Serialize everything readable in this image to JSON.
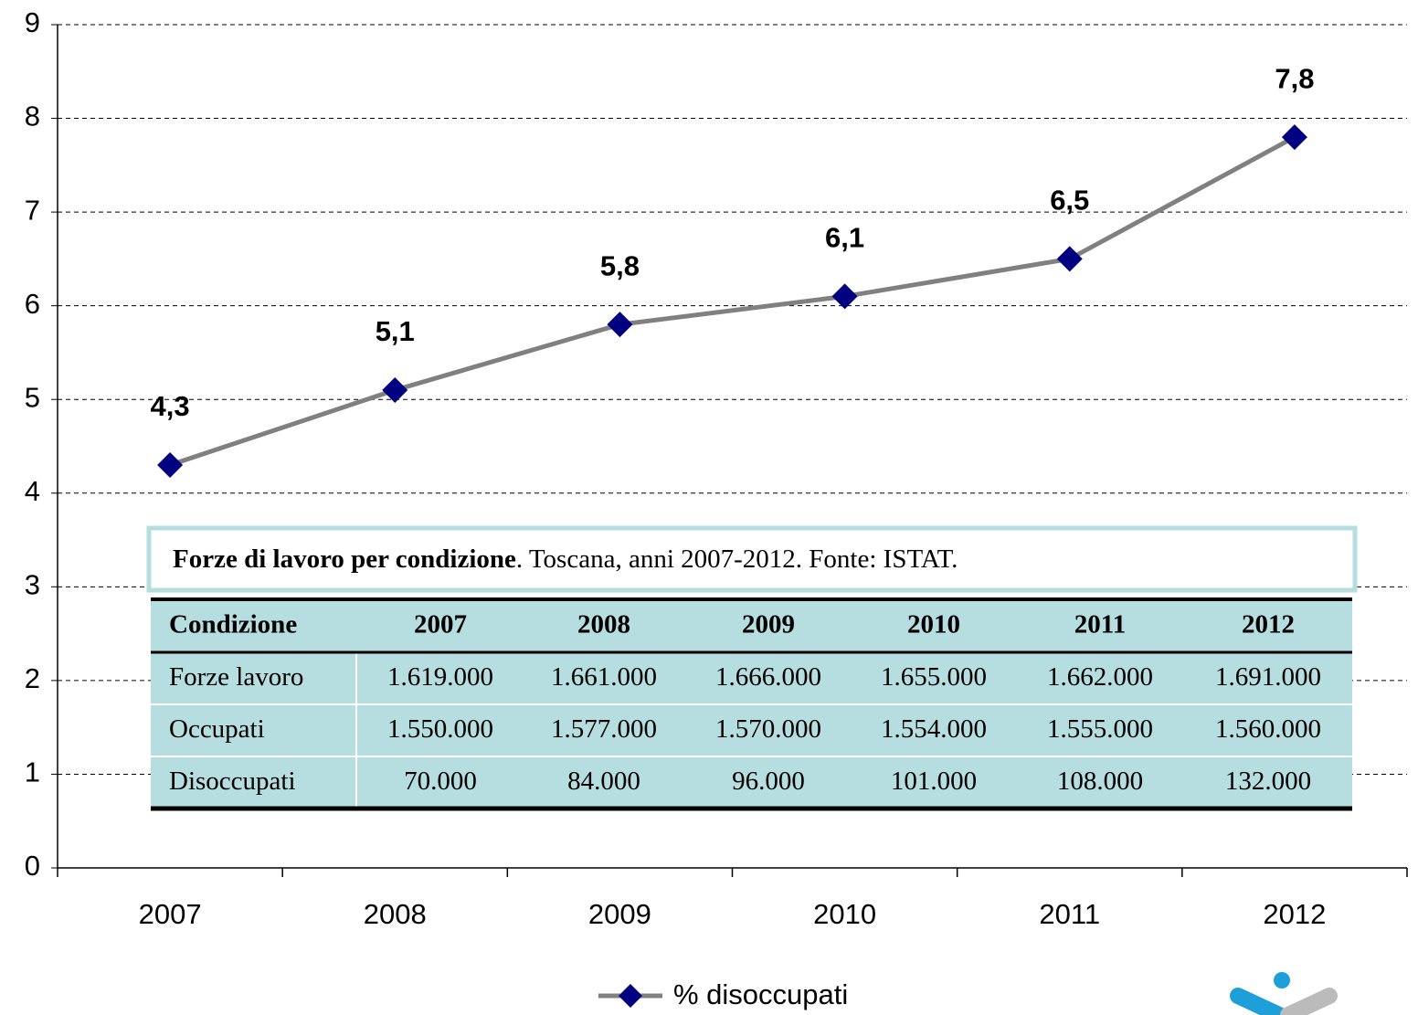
{
  "chart_data": {
    "type": "line",
    "categories": [
      "2007",
      "2008",
      "2009",
      "2010",
      "2011",
      "2012"
    ],
    "series": [
      {
        "name": "% disoccupati",
        "color": "#808080",
        "marker_color": "#000080",
        "values": [
          4.3,
          5.1,
          5.8,
          6.1,
          6.5,
          7.8
        ],
        "value_labels": [
          "4,3",
          "5,1",
          "5,8",
          "6,1",
          "6,5",
          "7,8"
        ]
      }
    ],
    "ylim": [
      0,
      9
    ],
    "yticks": [
      0,
      1,
      2,
      3,
      4,
      5,
      6,
      7,
      8,
      9
    ],
    "grid": true,
    "legend": "bottom"
  },
  "table": {
    "caption_title": "Forze di lavoro per condizione",
    "caption_text": ". Toscana, anni 2007-2012. Fonte: ISTAT.",
    "header": [
      "Condizione",
      "2007",
      "2008",
      "2009",
      "2010",
      "2011",
      "2012"
    ],
    "rows": [
      [
        "Forze lavoro",
        "1.619.000",
        "1.661.000",
        "1.666.000",
        "1.655.000",
        "1.662.000",
        "1.691.000"
      ],
      [
        "Occupati",
        "1.550.000",
        "1.577.000",
        "1.570.000",
        "1.554.000",
        "1.555.000",
        "1.560.000"
      ],
      [
        "Disoccupati",
        "70.000",
        "84.000",
        "96.000",
        "101.000",
        "108.000",
        "132.000"
      ]
    ]
  }
}
